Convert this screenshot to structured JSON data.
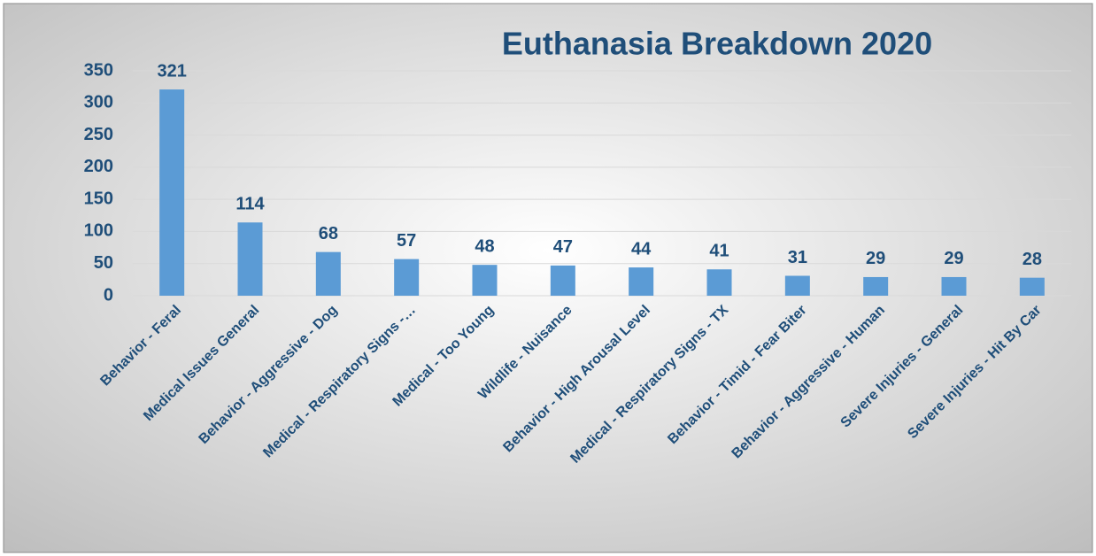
{
  "chart_data": {
    "type": "bar",
    "title": "Euthanasia Breakdown 2020",
    "categories": [
      "Behavior - Feral",
      "Medical Issues General",
      "Behavior - Aggressive - Dog",
      "Medical - Respiratory Signs -…",
      "Medical - Too Young",
      "Wildlife - Nuisance",
      "Behavior - High Arousal Level",
      "Medical - Respiratory Signs - TX",
      "Behavior - Timid - Fear Biter",
      "Behavior - Aggressive - Human",
      "Severe Injuries - General",
      "Severe Injuries - Hit By Car"
    ],
    "values": [
      321,
      114,
      68,
      57,
      48,
      47,
      44,
      41,
      31,
      29,
      29,
      28
    ],
    "color": "#5b9bd5",
    "ylim": [
      0,
      350
    ],
    "yticks": [
      0,
      50,
      100,
      150,
      200,
      250,
      300,
      350
    ],
    "grid": true
  }
}
